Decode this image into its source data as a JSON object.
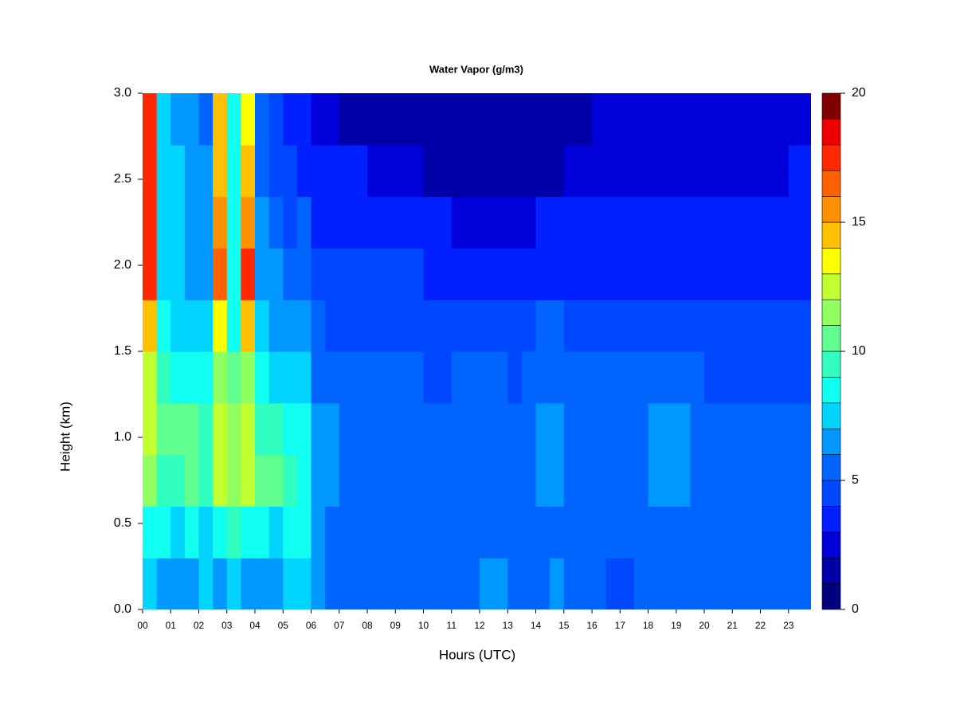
{
  "chart_data": {
    "type": "heatmap",
    "title": "Water Vapor (g/m3)",
    "xlabel": "Hours (UTC)",
    "ylabel": "Height (km)",
    "xlim": [
      0,
      23.8
    ],
    "ylim": [
      0,
      3
    ],
    "xticks": [
      {
        "value": 0,
        "label": "00"
      },
      {
        "value": 1,
        "label": "01"
      },
      {
        "value": 2,
        "label": "02"
      },
      {
        "value": 3,
        "label": "03"
      },
      {
        "value": 4,
        "label": "04"
      },
      {
        "value": 5,
        "label": "05"
      },
      {
        "value": 6,
        "label": "06"
      },
      {
        "value": 7,
        "label": "07"
      },
      {
        "value": 8,
        "label": "08"
      },
      {
        "value": 9,
        "label": "09"
      },
      {
        "value": 10,
        "label": "10"
      },
      {
        "value": 11,
        "label": "11"
      },
      {
        "value": 12,
        "label": "12"
      },
      {
        "value": 13,
        "label": "13"
      },
      {
        "value": 14,
        "label": "14"
      },
      {
        "value": 15,
        "label": "15"
      },
      {
        "value": 16,
        "label": "16"
      },
      {
        "value": 17,
        "label": "17"
      },
      {
        "value": 18,
        "label": "18"
      },
      {
        "value": 19,
        "label": "19"
      },
      {
        "value": 20,
        "label": "20"
      },
      {
        "value": 21,
        "label": "21"
      },
      {
        "value": 22,
        "label": "22"
      },
      {
        "value": 23,
        "label": "23"
      }
    ],
    "yticks": [
      {
        "value": 0,
        "label": "0.0"
      },
      {
        "value": 0.5,
        "label": "0.5"
      },
      {
        "value": 1,
        "label": "1.0"
      },
      {
        "value": 1.5,
        "label": "1.5"
      },
      {
        "value": 2,
        "label": "2.0"
      },
      {
        "value": 2.5,
        "label": "2.5"
      },
      {
        "value": 3,
        "label": "3.0"
      }
    ],
    "x": [
      0.25,
      0.75,
      1.25,
      1.75,
      2.25,
      2.75,
      3.25,
      3.75,
      4.25,
      4.75,
      5.25,
      5.75,
      6.25,
      6.75,
      7.25,
      7.75,
      8.25,
      8.75,
      9.25,
      9.75,
      10.25,
      10.75,
      11.25,
      11.75,
      12.25,
      12.75,
      13.25,
      13.75,
      14.25,
      14.75,
      15.25,
      15.75,
      16.25,
      16.75,
      17.25,
      17.75,
      18.25,
      18.75,
      19.25,
      19.75,
      20.25,
      20.75,
      21.25,
      21.75,
      22.25,
      22.75,
      23.25,
      23.75
    ],
    "y": [
      0.15,
      0.45,
      0.75,
      1.05,
      1.35,
      1.65,
      1.95,
      2.25,
      2.55,
      2.85
    ],
    "z": [
      [
        7,
        6,
        6,
        6,
        7,
        6,
        7,
        6,
        6,
        6,
        7,
        7,
        6,
        5,
        5,
        5,
        5,
        5,
        5,
        5,
        5,
        5,
        5,
        5,
        6,
        6,
        5,
        5,
        5,
        6,
        5,
        5,
        5,
        4,
        4,
        5,
        5,
        5,
        5,
        5,
        5,
        5,
        5,
        5,
        5,
        5,
        5,
        5
      ],
      [
        8,
        8,
        7,
        8,
        7,
        8,
        9,
        8,
        8,
        7,
        8,
        8,
        6,
        5,
        5,
        5,
        5,
        5,
        5,
        5,
        5,
        5,
        5,
        5,
        5,
        5,
        5,
        5,
        5,
        5,
        5,
        5,
        5,
        5,
        5,
        5,
        5,
        5,
        5,
        5,
        5,
        5,
        5,
        5,
        5,
        5,
        5,
        5
      ],
      [
        11,
        9,
        9,
        10,
        9,
        12,
        11,
        12,
        10,
        10,
        9,
        8,
        6,
        6,
        5,
        5,
        5,
        5,
        5,
        5,
        5,
        5,
        5,
        5,
        5,
        5,
        5,
        5,
        6,
        6,
        5,
        5,
        5,
        5,
        5,
        5,
        6,
        6,
        6,
        5,
        5,
        5,
        5,
        5,
        5,
        5,
        5,
        5
      ],
      [
        12,
        10,
        10,
        10,
        9,
        12,
        11,
        12,
        9,
        9,
        8,
        8,
        6,
        6,
        5,
        5,
        5,
        5,
        5,
        5,
        5,
        5,
        5,
        5,
        5,
        5,
        5,
        5,
        6,
        6,
        5,
        5,
        5,
        5,
        5,
        5,
        6,
        6,
        6,
        5,
        5,
        5,
        5,
        5,
        5,
        5,
        5,
        5
      ],
      [
        12,
        9,
        8,
        8,
        8,
        11,
        10,
        11,
        8,
        7,
        7,
        7,
        5,
        5,
        5,
        5,
        5,
        5,
        5,
        5,
        4,
        4,
        5,
        5,
        5,
        5,
        4,
        5,
        5,
        5,
        5,
        5,
        5,
        5,
        5,
        5,
        5,
        5,
        5,
        5,
        4,
        4,
        4,
        4,
        4,
        4,
        4,
        4
      ],
      [
        14,
        8,
        7,
        7,
        7,
        13,
        8,
        14,
        7,
        6,
        6,
        6,
        5,
        4,
        4,
        4,
        4,
        4,
        4,
        4,
        4,
        4,
        4,
        4,
        4,
        4,
        4,
        4,
        5,
        5,
        4,
        4,
        4,
        4,
        4,
        4,
        4,
        4,
        4,
        4,
        4,
        4,
        4,
        4,
        4,
        4,
        4,
        4
      ],
      [
        17,
        7,
        7,
        6,
        6,
        16,
        8,
        17,
        6,
        6,
        5,
        5,
        4,
        4,
        4,
        4,
        4,
        4,
        4,
        4,
        3,
        3,
        3,
        3,
        3,
        3,
        3,
        3,
        3,
        3,
        3,
        3,
        3,
        3,
        3,
        3,
        3,
        3,
        3,
        3,
        3,
        3,
        3,
        3,
        3,
        3,
        3,
        3
      ],
      [
        17,
        7,
        7,
        6,
        6,
        15,
        8,
        15,
        6,
        5,
        4,
        5,
        3,
        3,
        3,
        3,
        3,
        3,
        3,
        3,
        3,
        3,
        2,
        2,
        2,
        2,
        2,
        2,
        3,
        3,
        3,
        3,
        3,
        3,
        3,
        3,
        3,
        3,
        3,
        3,
        3,
        3,
        3,
        3,
        3,
        3,
        3,
        3
      ],
      [
        17,
        7,
        7,
        6,
        6,
        14,
        8,
        14,
        5,
        4,
        4,
        3,
        3,
        3,
        3,
        3,
        2,
        2,
        2,
        2,
        1,
        1,
        1,
        1,
        1,
        1,
        1,
        1,
        1,
        1,
        2,
        2,
        2,
        2,
        2,
        2,
        2,
        2,
        2,
        2,
        2,
        2,
        2,
        2,
        2,
        2,
        3,
        3
      ],
      [
        17,
        7,
        6,
        6,
        5,
        14,
        8,
        13,
        5,
        4,
        3,
        3,
        2,
        2,
        1,
        1,
        1,
        1,
        1,
        1,
        1,
        1,
        1,
        1,
        1,
        1,
        1,
        1,
        1,
        1,
        1,
        1,
        2,
        2,
        2,
        2,
        2,
        2,
        2,
        2,
        2,
        2,
        2,
        2,
        2,
        2,
        2,
        2
      ]
    ],
    "colorbar": {
      "levels": [
        0,
        1,
        2,
        3,
        4,
        5,
        6,
        7,
        8,
        9,
        10,
        11,
        12,
        13,
        14,
        15,
        16,
        17,
        18,
        19,
        20
      ],
      "colors": [
        "#000080",
        "#0000a8",
        "#0000d8",
        "#0020ff",
        "#0048ff",
        "#0064ff",
        "#0098ff",
        "#00d4ff",
        "#10fff0",
        "#30ffc0",
        "#60ff90",
        "#90ff60",
        "#c0ff30",
        "#ffff00",
        "#ffc000",
        "#ff9000",
        "#ff6000",
        "#ff2800",
        "#ee0000",
        "#800000"
      ],
      "ticks": [
        0,
        5,
        10,
        15,
        20
      ]
    }
  }
}
